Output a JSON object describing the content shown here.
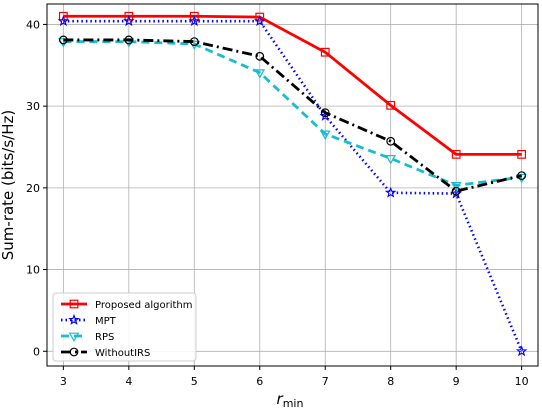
{
  "chart_data": {
    "type": "line",
    "xlabel": "r",
    "xlabel_sub": "min",
    "ylabel": "Sum-rate (bits/s/Hz)",
    "x": [
      3,
      4,
      5,
      6,
      7,
      8,
      9,
      10
    ],
    "xticks": [
      "3",
      "4",
      "5",
      "6",
      "7",
      "8",
      "9",
      "10"
    ],
    "ylim": [
      -1.8,
      42.5
    ],
    "yticks": [
      0,
      10,
      20,
      30,
      40
    ],
    "ytick_labels": [
      "0",
      "10",
      "20",
      "30",
      "40"
    ],
    "grid": true,
    "legend_position": "lower-left",
    "series": [
      {
        "name": "Proposed algorithm",
        "values": [
          41.0,
          41.0,
          41.0,
          40.9,
          36.6,
          30.1,
          24.1,
          24.1
        ],
        "color": "#ff0000",
        "dash": "solid",
        "marker": "square"
      },
      {
        "name": "MPT",
        "values": [
          40.4,
          40.4,
          40.4,
          40.4,
          28.8,
          19.4,
          19.3,
          0.0
        ],
        "color": "#0000ff",
        "dash": "dotted",
        "marker": "star"
      },
      {
        "name": "RPS",
        "values": [
          37.9,
          37.9,
          37.6,
          34.1,
          26.6,
          23.6,
          20.3,
          21.3
        ],
        "color": "#17becf",
        "dash": "dashed",
        "marker": "triangle-down"
      },
      {
        "name": "WithoutIRS",
        "values": [
          38.1,
          38.1,
          37.9,
          36.1,
          29.2,
          25.7,
          19.6,
          21.5
        ],
        "color": "#000000",
        "dash": "dashdot",
        "marker": "circle"
      }
    ]
  }
}
